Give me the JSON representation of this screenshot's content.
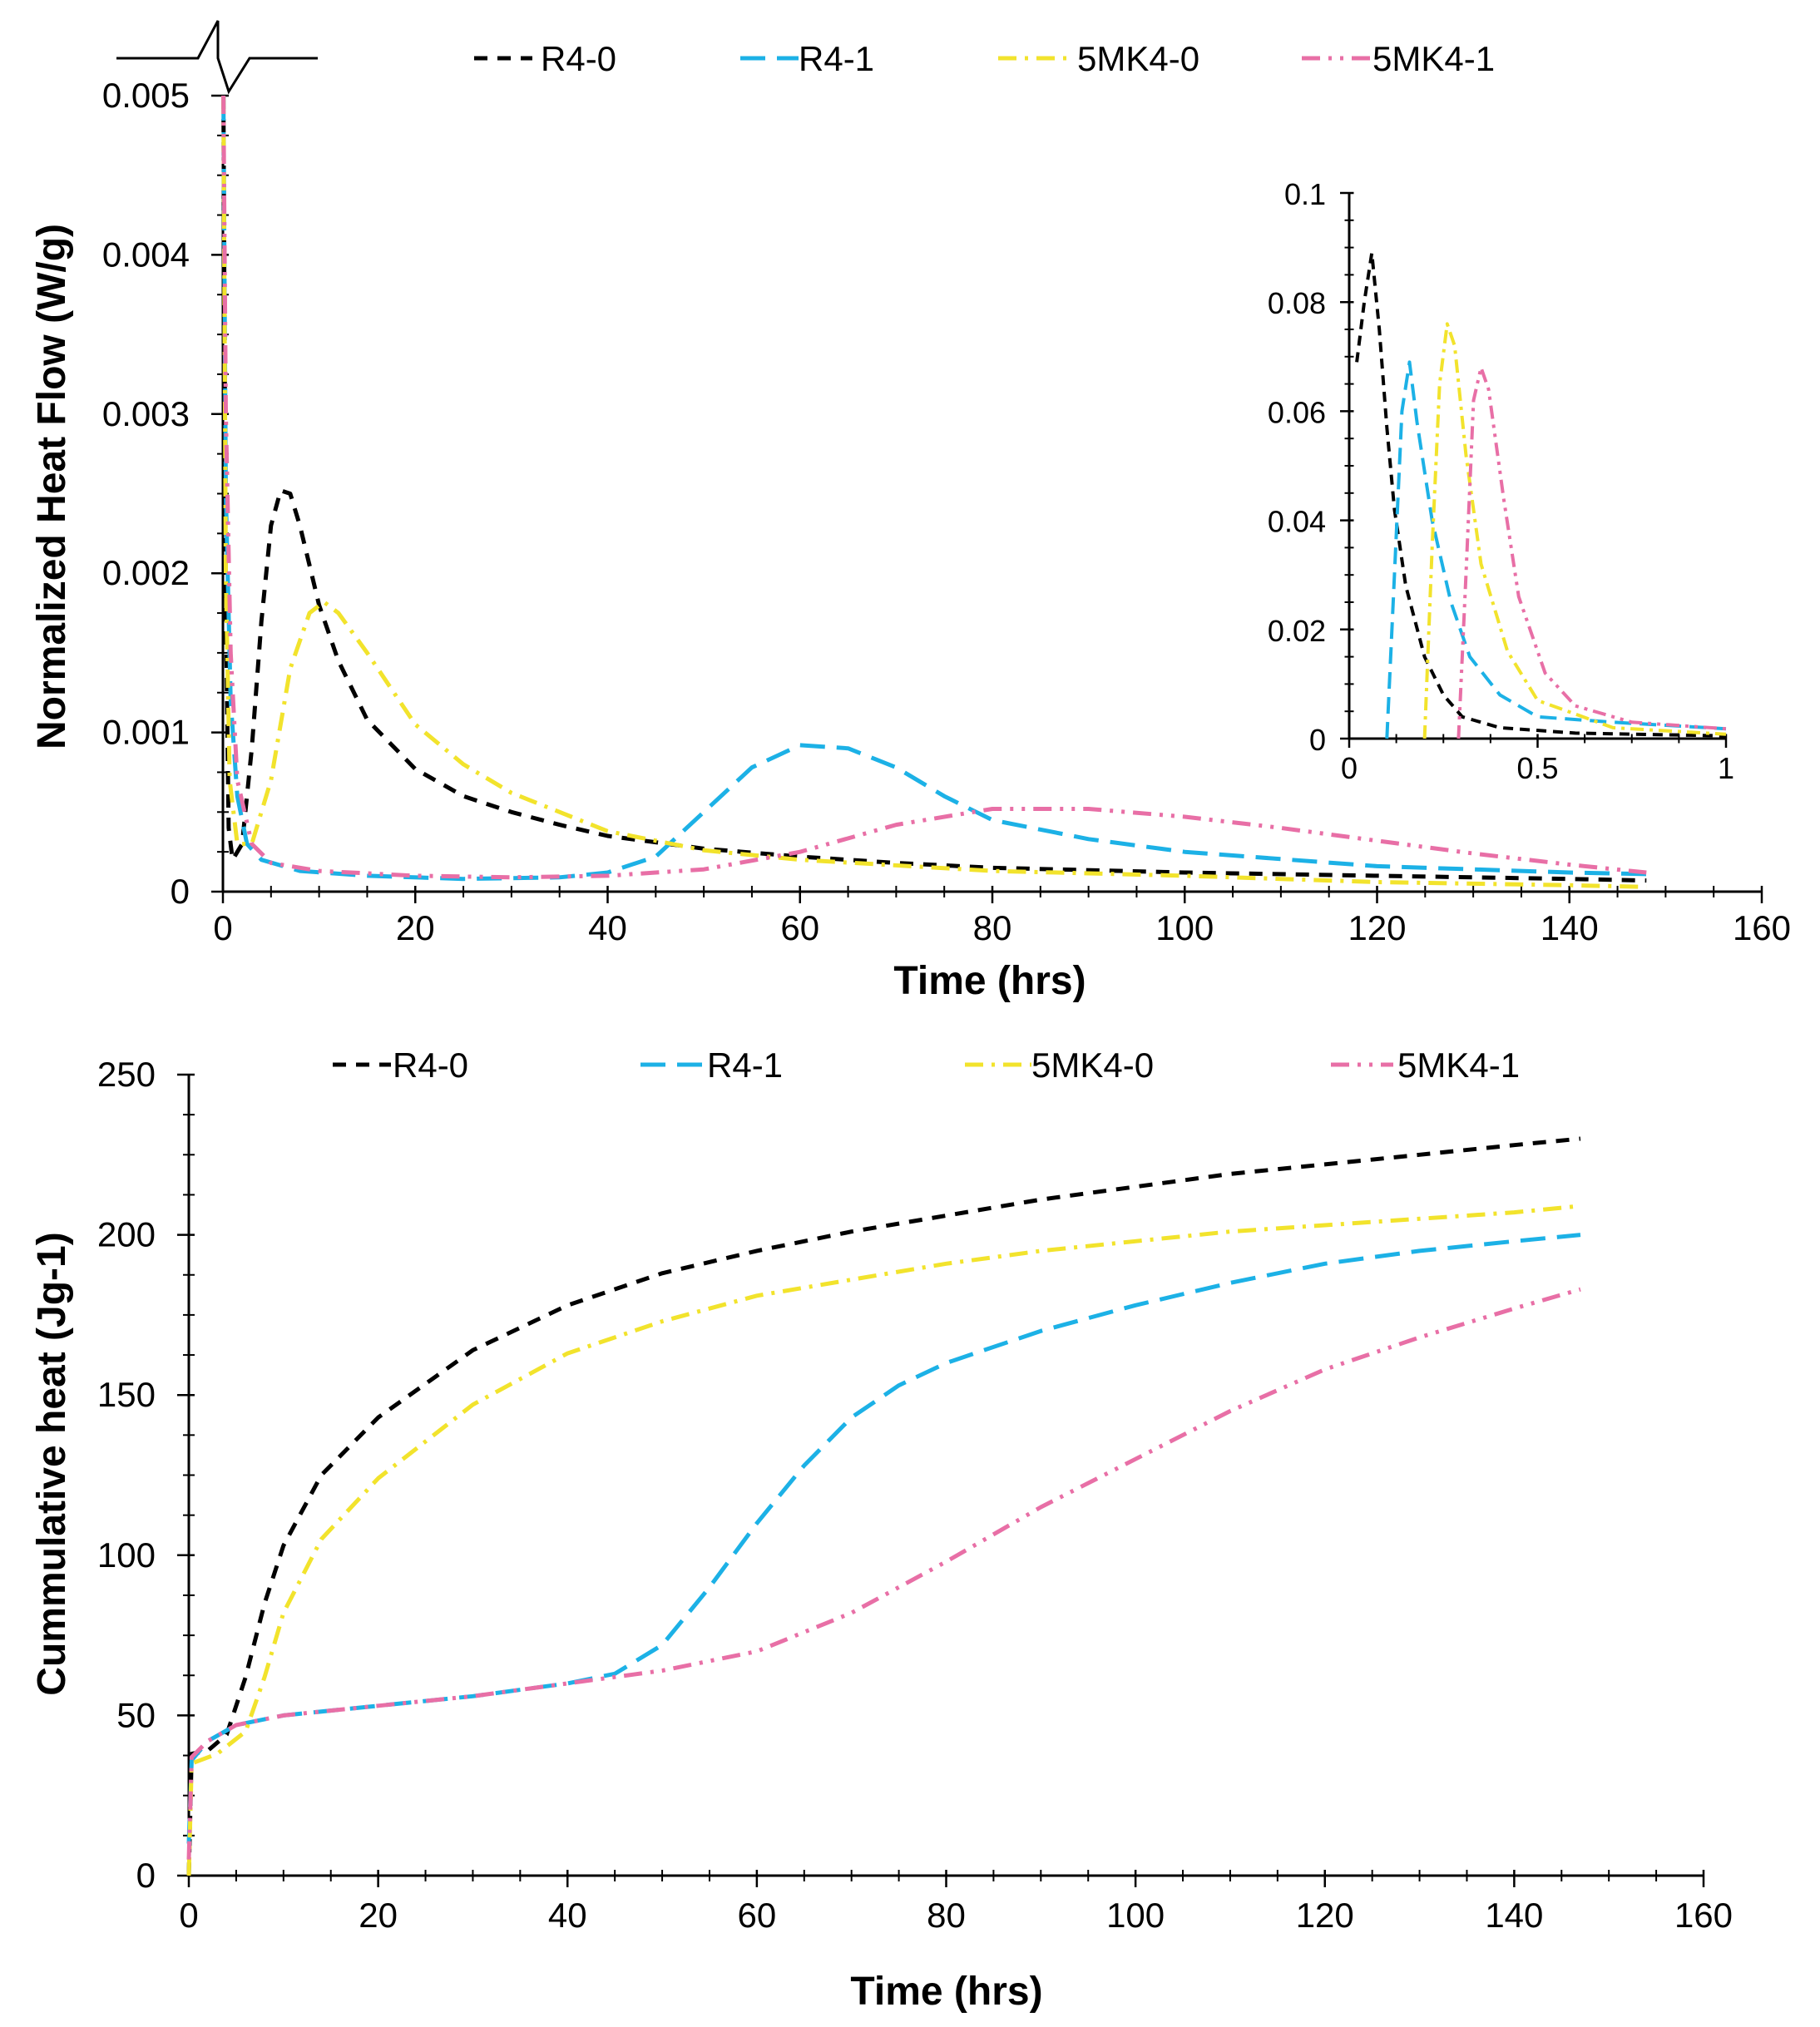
{
  "chart_data": [
    {
      "type": "line",
      "xlabel": "Time (hrs)",
      "ylabel": "Normalized Heat Flow (W/g)",
      "xlim": [
        0,
        160
      ],
      "ylim": [
        0,
        0.005
      ],
      "x_ticks": [
        0,
        20,
        40,
        60,
        80,
        100,
        120,
        140,
        160
      ],
      "y_ticks": [
        "0",
        "0.001",
        "0.002",
        "0.003",
        "0.004",
        "0.005"
      ],
      "legend_position": "top",
      "grid": false,
      "series": [
        {
          "name": "R4-0",
          "color": "#000000",
          "dash": "16 12",
          "points": [
            [
              0.05,
              0.005
            ],
            [
              0.3,
              0.0018
            ],
            [
              0.6,
              0.0004
            ],
            [
              1,
              0.0002
            ],
            [
              2,
              0.0003
            ],
            [
              3,
              0.0009
            ],
            [
              4,
              0.0017
            ],
            [
              5,
              0.0023
            ],
            [
              6,
              0.00252
            ],
            [
              7,
              0.0025
            ],
            [
              8,
              0.0023
            ],
            [
              9,
              0.00205
            ],
            [
              10,
              0.0018
            ],
            [
              12,
              0.00145
            ],
            [
              15,
              0.00108
            ],
            [
              20,
              0.00077
            ],
            [
              25,
              0.0006
            ],
            [
              30,
              0.0005
            ],
            [
              35,
              0.00042
            ],
            [
              40,
              0.00035
            ],
            [
              50,
              0.00027
            ],
            [
              60,
              0.00022
            ],
            [
              70,
              0.00018
            ],
            [
              80,
              0.00015
            ],
            [
              100,
              0.00012
            ],
            [
              120,
              0.0001
            ],
            [
              140,
              8e-05
            ],
            [
              148,
              7e-05
            ]
          ]
        },
        {
          "name": "R4-1",
          "color": "#1cb1e6",
          "dash": "30 14",
          "points": [
            [
              0.05,
              0.005
            ],
            [
              0.3,
              0.0025
            ],
            [
              0.8,
              0.0012
            ],
            [
              1.5,
              0.0006
            ],
            [
              2.5,
              0.0003
            ],
            [
              4,
              0.0002
            ],
            [
              8,
              0.00013
            ],
            [
              15,
              0.0001
            ],
            [
              25,
              8e-05
            ],
            [
              35,
              9e-05
            ],
            [
              40,
              0.00012
            ],
            [
              45,
              0.00022
            ],
            [
              50,
              0.0005
            ],
            [
              55,
              0.00078
            ],
            [
              60,
              0.00092
            ],
            [
              65,
              0.0009
            ],
            [
              70,
              0.00078
            ],
            [
              75,
              0.0006
            ],
            [
              80,
              0.00045
            ],
            [
              90,
              0.00033
            ],
            [
              100,
              0.00025
            ],
            [
              120,
              0.00016
            ],
            [
              140,
              0.00012
            ],
            [
              148,
              0.00011
            ]
          ]
        },
        {
          "name": "5MK4-0",
          "color": "#f2e32c",
          "dash": "22 10 4 10",
          "points": [
            [
              0.05,
              0.005
            ],
            [
              0.3,
              0.002
            ],
            [
              0.7,
              0.0007
            ],
            [
              1.5,
              0.0003
            ],
            [
              3,
              0.0003
            ],
            [
              5,
              0.0007
            ],
            [
              7,
              0.0014
            ],
            [
              9,
              0.00175
            ],
            [
              10.5,
              0.00182
            ],
            [
              12,
              0.00175
            ],
            [
              15,
              0.0015
            ],
            [
              20,
              0.00105
            ],
            [
              25,
              0.0008
            ],
            [
              30,
              0.00062
            ],
            [
              40,
              0.00038
            ],
            [
              50,
              0.00026
            ],
            [
              60,
              0.0002
            ],
            [
              80,
              0.00013
            ],
            [
              100,
              0.0001
            ],
            [
              120,
              6e-05
            ],
            [
              140,
              4e-05
            ],
            [
              148,
              3e-05
            ]
          ]
        },
        {
          "name": "5MK4-1",
          "color": "#e86fa6",
          "dash": "22 10 4 10 4 10",
          "points": [
            [
              0.05,
              0.005
            ],
            [
              0.3,
              0.003
            ],
            [
              0.8,
              0.0015
            ],
            [
              1.5,
              0.0007
            ],
            [
              3,
              0.0003
            ],
            [
              5,
              0.00018
            ],
            [
              10,
              0.00013
            ],
            [
              20,
              0.0001
            ],
            [
              30,
              9e-05
            ],
            [
              40,
              0.0001
            ],
            [
              50,
              0.00014
            ],
            [
              60,
              0.00025
            ],
            [
              70,
              0.00042
            ],
            [
              80,
              0.00052
            ],
            [
              90,
              0.00052
            ],
            [
              100,
              0.00047
            ],
            [
              110,
              0.0004
            ],
            [
              120,
              0.00032
            ],
            [
              130,
              0.00024
            ],
            [
              140,
              0.00017
            ],
            [
              148,
              0.00012
            ]
          ]
        }
      ]
    },
    {
      "type": "line",
      "role": "inset",
      "xlim": [
        0,
        1
      ],
      "ylim": [
        0,
        0.1
      ],
      "x_ticks": [
        "0",
        "0.5",
        "1"
      ],
      "y_ticks": [
        "0",
        "0.02",
        "0.04",
        "0.06",
        "0.08",
        "0.1"
      ],
      "series": [
        {
          "name": "R4-0",
          "color": "#000000",
          "dash": "12 8",
          "points": [
            [
              0.02,
              0.069
            ],
            [
              0.04,
              0.08
            ],
            [
              0.06,
              0.089
            ],
            [
              0.08,
              0.075
            ],
            [
              0.1,
              0.057
            ],
            [
              0.12,
              0.042
            ],
            [
              0.15,
              0.028
            ],
            [
              0.2,
              0.015
            ],
            [
              0.25,
              0.008
            ],
            [
              0.3,
              0.004
            ],
            [
              0.4,
              0.002
            ],
            [
              0.6,
              0.001
            ],
            [
              1,
              0.0005
            ]
          ]
        },
        {
          "name": "R4-1",
          "color": "#1cb1e6",
          "dash": "20 10",
          "points": [
            [
              0.1,
              0.0
            ],
            [
              0.12,
              0.03
            ],
            [
              0.14,
              0.06
            ],
            [
              0.16,
              0.069
            ],
            [
              0.18,
              0.058
            ],
            [
              0.22,
              0.04
            ],
            [
              0.27,
              0.025
            ],
            [
              0.32,
              0.015
            ],
            [
              0.4,
              0.008
            ],
            [
              0.5,
              0.004
            ],
            [
              0.7,
              0.003
            ],
            [
              1,
              0.0018
            ]
          ]
        },
        {
          "name": "5MK4-0",
          "color": "#f2e32c",
          "dash": "16 7 4 7",
          "points": [
            [
              0.2,
              0.0
            ],
            [
              0.22,
              0.035
            ],
            [
              0.24,
              0.065
            ],
            [
              0.26,
              0.076
            ],
            [
              0.28,
              0.072
            ],
            [
              0.31,
              0.052
            ],
            [
              0.35,
              0.032
            ],
            [
              0.42,
              0.016
            ],
            [
              0.5,
              0.007
            ],
            [
              0.7,
              0.002
            ],
            [
              1,
              0.0008
            ]
          ]
        },
        {
          "name": "5MK4-1",
          "color": "#e86fa6",
          "dash": "16 7 4 7 4 7",
          "points": [
            [
              0.29,
              0.0
            ],
            [
              0.31,
              0.03
            ],
            [
              0.33,
              0.062
            ],
            [
              0.35,
              0.068
            ],
            [
              0.37,
              0.064
            ],
            [
              0.41,
              0.044
            ],
            [
              0.45,
              0.026
            ],
            [
              0.52,
              0.012
            ],
            [
              0.6,
              0.006
            ],
            [
              0.75,
              0.003
            ],
            [
              1,
              0.0018
            ]
          ]
        }
      ]
    },
    {
      "type": "line",
      "xlabel": "Time (hrs)",
      "ylabel": "Cummulative heat (Jg-1)",
      "xlim": [
        0,
        160
      ],
      "ylim": [
        0,
        250
      ],
      "x_ticks": [
        0,
        20,
        40,
        60,
        80,
        100,
        120,
        140,
        160
      ],
      "y_ticks": [
        0,
        50,
        100,
        150,
        200,
        250
      ],
      "legend_position": "top",
      "grid": false,
      "series": [
        {
          "name": "R4-0",
          "color": "#000000",
          "dash": "16 12",
          "points": [
            [
              0,
              0
            ],
            [
              0.3,
              38
            ],
            [
              2,
              39
            ],
            [
              4,
              44
            ],
            [
              6,
              62
            ],
            [
              8,
              85
            ],
            [
              10,
              103
            ],
            [
              14,
              125
            ],
            [
              20,
              143
            ],
            [
              30,
              164
            ],
            [
              40,
              178
            ],
            [
              50,
              188
            ],
            [
              60,
              195
            ],
            [
              70,
              201
            ],
            [
              80,
              206
            ],
            [
              90,
              211
            ],
            [
              100,
              215
            ],
            [
              110,
              219
            ],
            [
              120,
              222
            ],
            [
              130,
              225
            ],
            [
              140,
              228
            ],
            [
              147,
              230
            ]
          ]
        },
        {
          "name": "R4-1",
          "color": "#1cb1e6",
          "dash": "30 14",
          "points": [
            [
              0,
              10
            ],
            [
              0.3,
              36
            ],
            [
              2,
              42
            ],
            [
              5,
              47
            ],
            [
              10,
              50
            ],
            [
              20,
              53
            ],
            [
              30,
              56
            ],
            [
              40,
              60
            ],
            [
              45,
              63
            ],
            [
              50,
              72
            ],
            [
              55,
              90
            ],
            [
              60,
              110
            ],
            [
              65,
              128
            ],
            [
              70,
              143
            ],
            [
              75,
              153
            ],
            [
              80,
              160
            ],
            [
              90,
              170
            ],
            [
              100,
              178
            ],
            [
              110,
              185
            ],
            [
              120,
              191
            ],
            [
              130,
              195
            ],
            [
              140,
              198
            ],
            [
              147,
              200
            ]
          ]
        },
        {
          "name": "5MK4-0",
          "color": "#f2e32c",
          "dash": "22 10 4 10",
          "points": [
            [
              0,
              0
            ],
            [
              0.3,
              35
            ],
            [
              3,
              38
            ],
            [
              6,
              45
            ],
            [
              8,
              62
            ],
            [
              10,
              82
            ],
            [
              14,
              105
            ],
            [
              20,
              124
            ],
            [
              30,
              147
            ],
            [
              40,
              163
            ],
            [
              50,
              173
            ],
            [
              60,
              181
            ],
            [
              70,
              186
            ],
            [
              80,
              191
            ],
            [
              90,
              195
            ],
            [
              100,
              198
            ],
            [
              110,
              201
            ],
            [
              120,
              203
            ],
            [
              130,
              205
            ],
            [
              140,
              207
            ],
            [
              147,
              209
            ]
          ]
        },
        {
          "name": "5MK4-1",
          "color": "#e86fa6",
          "dash": "22 10 4 10 4 10",
          "points": [
            [
              0,
              5
            ],
            [
              0.3,
              37
            ],
            [
              2,
              42
            ],
            [
              5,
              47
            ],
            [
              10,
              50
            ],
            [
              20,
              53
            ],
            [
              30,
              56
            ],
            [
              40,
              60
            ],
            [
              50,
              64
            ],
            [
              60,
              70
            ],
            [
              70,
              82
            ],
            [
              80,
              98
            ],
            [
              90,
              115
            ],
            [
              100,
              130
            ],
            [
              110,
              145
            ],
            [
              120,
              158
            ],
            [
              130,
              168
            ],
            [
              140,
              177
            ],
            [
              147,
              183
            ]
          ]
        }
      ]
    }
  ]
}
